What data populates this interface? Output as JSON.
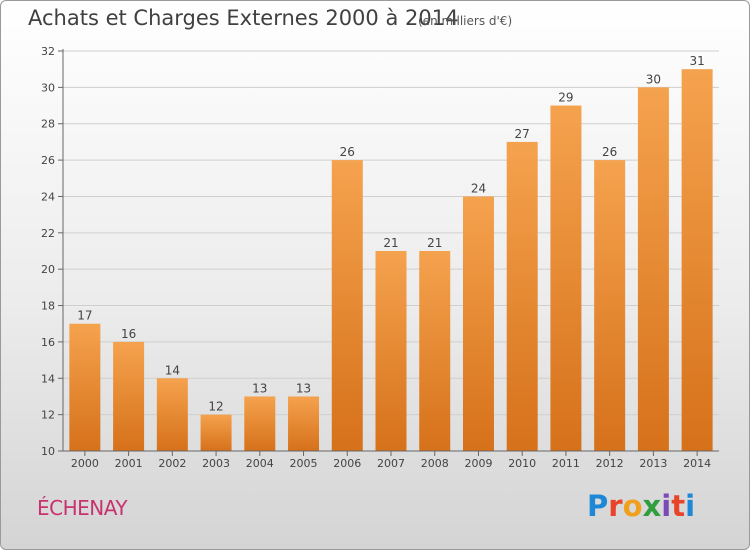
{
  "title": "Achats et Charges Externes 2000 à 2014",
  "subtitle": "(en milliers d'€)",
  "place": "ÉCHENAY",
  "logo": {
    "letters": [
      "P",
      "r",
      "o",
      "x",
      "i",
      "t",
      "i"
    ],
    "colors": [
      "#1e88d6",
      "#e8442a",
      "#f0a01c",
      "#2e9e3e",
      "#7b4ab8",
      "#e8442a",
      "#1e88d6"
    ]
  },
  "colors": {
    "bar_top": "#f5a24e",
    "bar_bottom": "#d6711a",
    "axis": "#666666",
    "grid": "#cfcfcf"
  },
  "chart_data": {
    "type": "bar",
    "categories": [
      "2000",
      "2001",
      "2002",
      "2003",
      "2004",
      "2005",
      "2006",
      "2007",
      "2008",
      "2009",
      "2010",
      "2011",
      "2012",
      "2013",
      "2014"
    ],
    "values": [
      17,
      16,
      14,
      12,
      13,
      13,
      26,
      21,
      21,
      24,
      27,
      29,
      26,
      30,
      31
    ],
    "yticks": [
      10,
      12,
      14,
      16,
      18,
      20,
      22,
      24,
      26,
      28,
      30,
      32
    ],
    "ylim": [
      10,
      32
    ],
    "grid": true,
    "data_labels": true
  }
}
